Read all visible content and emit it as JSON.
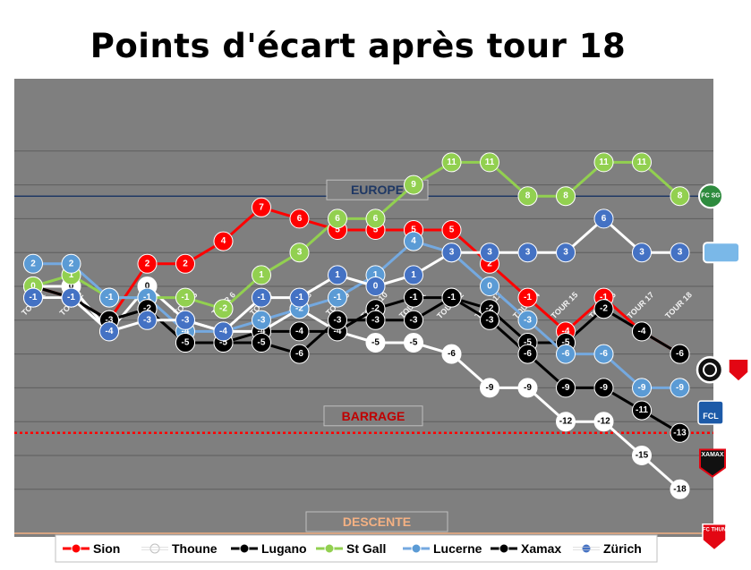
{
  "chart_data": {
    "type": "line",
    "title": "Points d'écart après tour 18",
    "categories": [
      "TOUR 1",
      "TOUR 2",
      "TOUR 3",
      "TOUR 4",
      "TOUR 5",
      "TOUR 6",
      "TOUR 7",
      "TOUR 8",
      "TOUR 9",
      "TOUR 10",
      "TOUR 11",
      "TOUR 12",
      "TOUR 13",
      "TOUR 14",
      "TOUR 15",
      "TOUR 16",
      "TOUR 17",
      "TOUR 18"
    ],
    "visible_tick_labels": [
      "TOUR 1",
      "TOUR 2",
      "TOUR 4",
      "TOUR 5",
      "TOUR 6",
      "TOUR 7",
      "TOUR 8",
      "TOUR 9",
      "TOUR 10",
      "TOUR 11",
      "TOUR 12",
      "TOUR 13",
      "TOUR 14",
      "TOUR 15",
      "TOUR 16",
      "TOUR 17",
      "TOUR 18"
    ],
    "ylim": [
      -19,
      14
    ],
    "grid": true,
    "legend_position": "bottom",
    "series": [
      {
        "name": "Sion",
        "color": "#ff0000",
        "marker_fill": "#ff0000",
        "text_color": "#ffffff",
        "values": [
          0,
          -1,
          -3,
          2,
          2,
          4,
          7,
          6,
          5,
          5,
          5,
          5,
          2,
          -1,
          -4,
          -1,
          -4,
          -6
        ]
      },
      {
        "name": "Thoune",
        "color": "#ffffff",
        "marker_fill": "#ffffff",
        "text_color": "#000000",
        "values": [
          0,
          0,
          -4,
          0,
          -3,
          -4,
          -4,
          -2,
          -4,
          -5,
          -5,
          -6,
          -9,
          -9,
          -12,
          -12,
          -15,
          -18
        ]
      },
      {
        "name": "Lugano",
        "color": "#000000",
        "marker_fill": "#000000",
        "text_color": "#ffffff",
        "values": [
          0,
          -1,
          -3,
          -2,
          -5,
          -5,
          -4,
          -4,
          -4,
          -2,
          -1,
          -1,
          -2,
          -5,
          -5,
          -2,
          -4,
          -6
        ]
      },
      {
        "name": "St Gall",
        "color": "#92d050",
        "marker_fill": "#92d050",
        "text_color": "#ffffff",
        "values": [
          0,
          1,
          -1,
          -1,
          -1,
          -2,
          1,
          3,
          6,
          6,
          9,
          11,
          11,
          8,
          8,
          11,
          11,
          8
        ]
      },
      {
        "name": "Lucerne",
        "color": "#74a9e0",
        "marker_fill": "#5b9bd5",
        "text_color": "#ffffff",
        "values": [
          2,
          2,
          -1,
          -1,
          -4,
          -4,
          -3,
          -2,
          -1,
          1,
          4,
          3,
          0,
          -3,
          -6,
          -6,
          -9,
          -9
        ]
      },
      {
        "name": "Xamax",
        "color": "#000000",
        "marker_fill": "#000000",
        "text_color": "#ffffff",
        "values": [
          -1,
          -1,
          -3,
          -2,
          -5,
          -5,
          -5,
          -6,
          -3,
          -3,
          -3,
          -1,
          -3,
          -6,
          -9,
          -9,
          -11,
          -13
        ]
      },
      {
        "name": "Zürich",
        "color": "#ffffff",
        "marker_fill": "#4472c4",
        "text_color": "#ffffff",
        "values": [
          -1,
          -1,
          -4,
          -3,
          -3,
          -4,
          -1,
          -1,
          1,
          0,
          1,
          3,
          3,
          3,
          3,
          6,
          3,
          3
        ]
      }
    ],
    "zones": [
      {
        "label": "EUROPE",
        "y": 8,
        "line_color": "#1f3864",
        "text_color": "#1f3864",
        "style": "solid"
      },
      {
        "label": "BARRAGE",
        "y": -13,
        "line_color": "#ff0000",
        "text_color": "#c00000",
        "style": "dotted"
      },
      {
        "label": "DESCENTE",
        "y": -18,
        "line_color": "#f4b183",
        "text_color": "#f4b183",
        "style": "solid"
      }
    ]
  },
  "logos": [
    {
      "name": "st-gall-logo",
      "color": "#2e8b3e",
      "text": "FC SG"
    },
    {
      "name": "zurich-logo",
      "color": "#7ab8e8",
      "text": ""
    },
    {
      "name": "lugano-logo",
      "color": "#000000",
      "text": ""
    },
    {
      "name": "sion-logo",
      "color": "#e30613",
      "text": ""
    },
    {
      "name": "lucerne-logo",
      "color": "#1c5aa8",
      "text": "FCL"
    },
    {
      "name": "xamax-logo",
      "color": "#e30613",
      "text": "XAMAX"
    },
    {
      "name": "thoune-logo",
      "color": "#e30613",
      "text": "FC THUN"
    }
  ]
}
